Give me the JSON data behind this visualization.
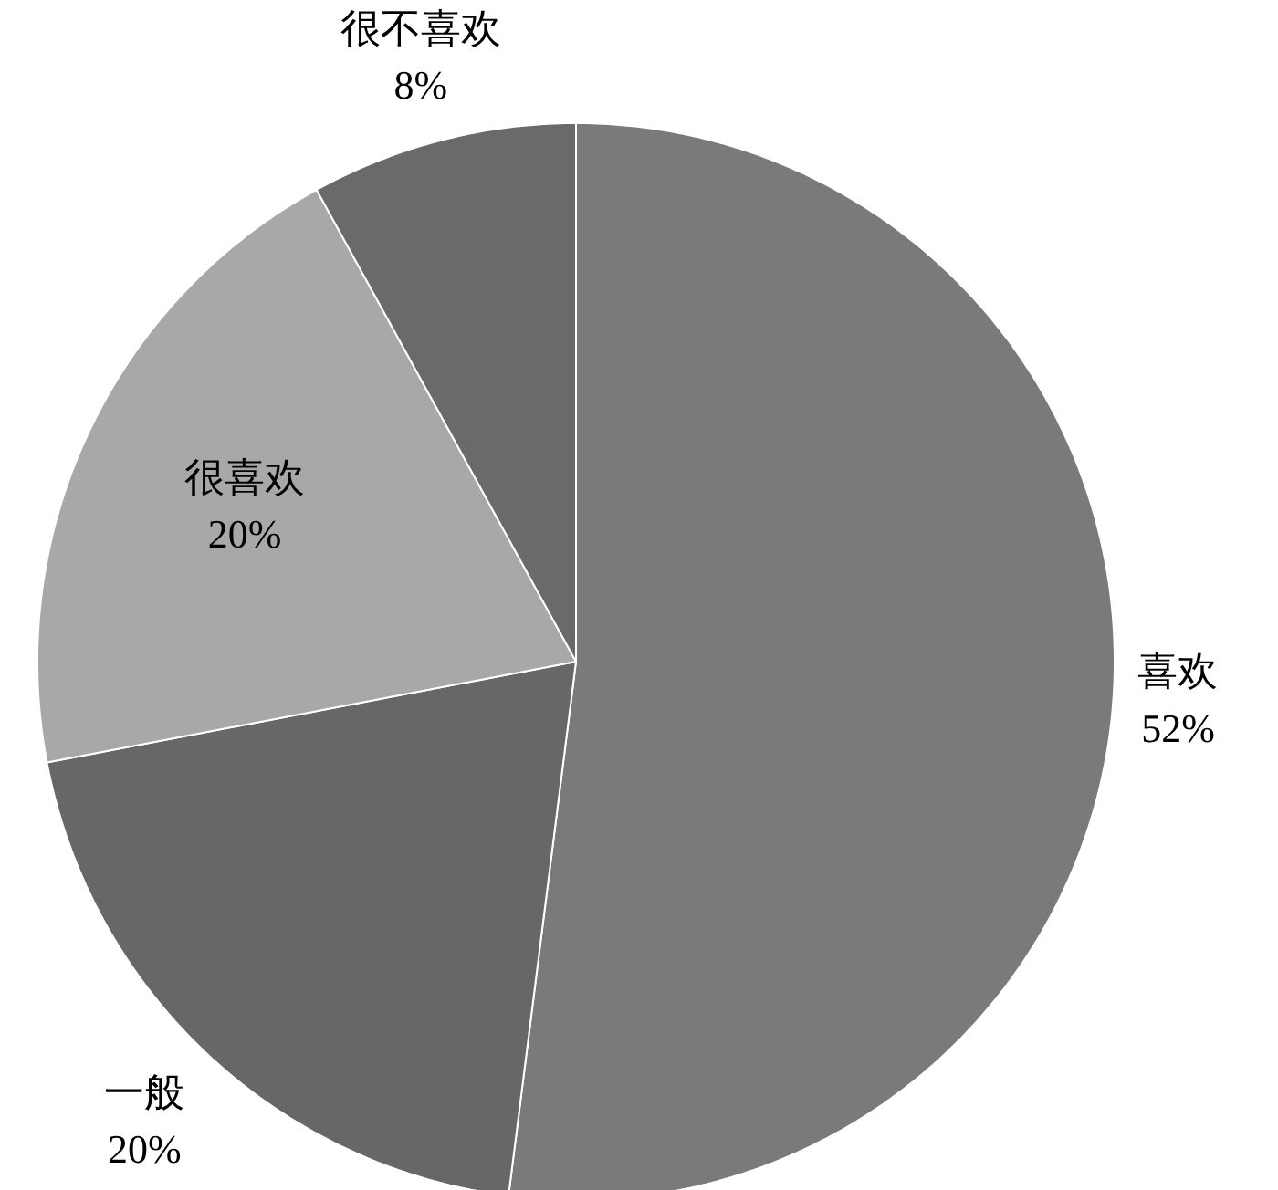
{
  "chart_data": {
    "type": "pie",
    "categories": [
      "喜欢",
      "一般",
      "很喜欢",
      "很不喜欢"
    ],
    "values": [
      52,
      20,
      20,
      8
    ],
    "colors": [
      "#7a7a7a",
      "#676767",
      "#a8a8a8",
      "#6a6a6a"
    ],
    "value_labels": [
      "52%",
      "20%",
      "20%",
      "8%"
    ]
  }
}
